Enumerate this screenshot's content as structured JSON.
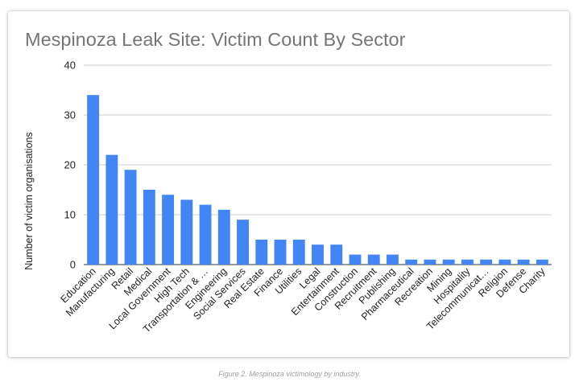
{
  "chart_data": {
    "type": "bar",
    "title": "Mespinoza Leak Site: Victim Count By Sector",
    "xlabel": "",
    "ylabel": "Number of victim organisations",
    "ylim": [
      0,
      40
    ],
    "yticks": [
      0,
      10,
      20,
      30,
      40
    ],
    "grid": true,
    "legend": "none",
    "bar_color": "#4285f4",
    "categories": [
      "Education",
      "Manufacturing",
      "Retail",
      "Medical",
      "Local Government",
      "High Tech",
      "Transportation & …",
      "Engineering",
      "Social Services",
      "Real Estate",
      "Finance",
      "Utilities",
      "Legal",
      "Entertainment",
      "Construction",
      "Recruitment",
      "Publishing",
      "Pharmaceutical",
      "Recreation",
      "Mining",
      "Hospitality",
      "Telecommunicat…",
      "Religion",
      "Defense",
      "Charity"
    ],
    "values": [
      34,
      22,
      19,
      15,
      14,
      13,
      12,
      11,
      9,
      5,
      5,
      5,
      4,
      4,
      2,
      2,
      2,
      1,
      1,
      1,
      1,
      1,
      1,
      1,
      1
    ]
  },
  "caption": "Figure 2. Mespinoza victimology by industry."
}
